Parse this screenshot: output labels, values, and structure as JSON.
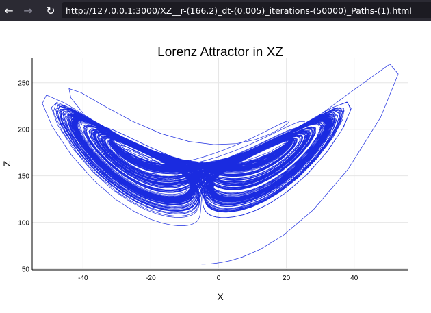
{
  "browser": {
    "back_icon": "arrow-left-icon",
    "forward_icon": "arrow-right-icon",
    "reload_icon": "reload-icon",
    "url": "http://127.0.0.1:3000/XZ__r-(166.2)_dt-(0.005)_iterations-(50000)_Paths-(1).html"
  },
  "chart_data": {
    "type": "line",
    "title": "Lorenz Attractor in XZ",
    "xlabel": "X",
    "ylabel": "Z",
    "xlim": [
      -55,
      56
    ],
    "ylim": [
      49,
      277
    ],
    "x_ticks": [
      -40,
      -20,
      0,
      20,
      40
    ],
    "y_ticks": [
      50,
      100,
      150,
      200,
      250
    ],
    "grid": true,
    "legend": "none",
    "line_color": "#1a2be0",
    "params": {
      "r": 166.2,
      "dt": 0.005,
      "iterations": 50000,
      "paths": 1
    },
    "series": [
      {
        "note_range_x": [
          -52,
          53
        ],
        "note_range_z": [
          55,
          270
        ]
      }
    ]
  }
}
